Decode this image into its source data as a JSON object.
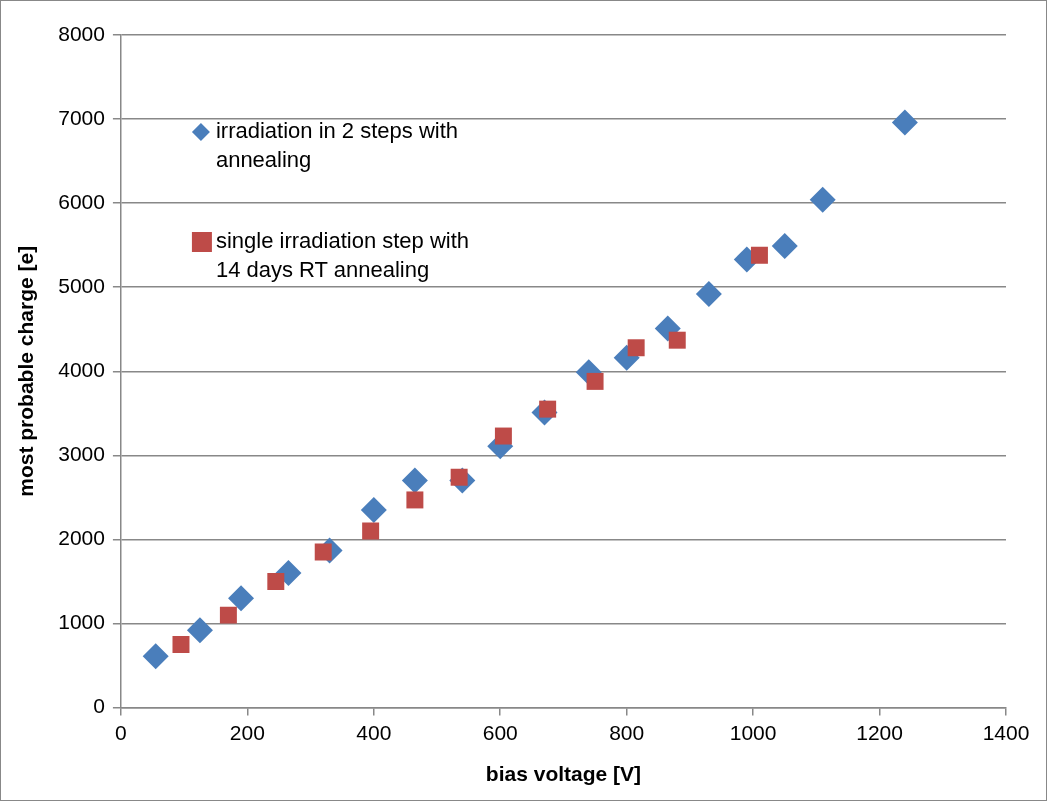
{
  "chart_data": {
    "type": "scatter",
    "xlabel": "bias voltage [V]",
    "ylabel": "most probable charge [e]",
    "xlim": [
      0,
      1400
    ],
    "xticks": [
      0,
      200,
      400,
      600,
      800,
      1000,
      1200,
      1400
    ],
    "ylim": [
      0,
      8000
    ],
    "yticks": [
      0,
      1000,
      2000,
      3000,
      4000,
      5000,
      6000,
      7000,
      8000
    ],
    "grid": "y",
    "legend": "top left",
    "series": [
      {
        "name": "irradiation in 2 steps with annealing",
        "color": "#4a7ebb",
        "marker": "diamond",
        "x": [
          55,
          125,
          190,
          265,
          330,
          400,
          465,
          540,
          600,
          670,
          740,
          800,
          865,
          930,
          990,
          1050,
          1110,
          1240
        ],
        "values": [
          610,
          920,
          1300,
          1600,
          1870,
          2350,
          2700,
          2700,
          3110,
          3510,
          3990,
          4160,
          4510,
          4920,
          5330,
          5490,
          6040,
          6960
        ]
      },
      {
        "name": "single irradiation step with 14 days RT annealing",
        "color": "#be4b48",
        "marker": "square",
        "x": [
          95,
          170,
          245,
          320,
          395,
          465,
          535,
          605,
          675,
          750,
          815,
          880,
          1010
        ],
        "values": [
          750,
          1100,
          1500,
          1850,
          2100,
          2470,
          2740,
          3230,
          3550,
          3880,
          4280,
          4370,
          5380
        ]
      }
    ]
  }
}
